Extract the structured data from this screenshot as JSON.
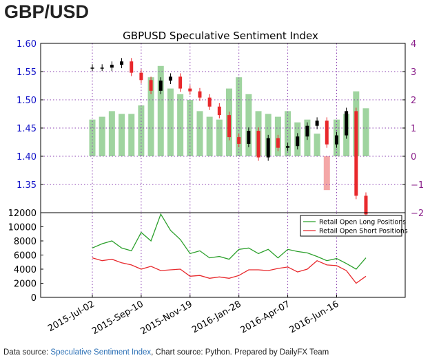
{
  "page": {
    "title": "GBP/USD",
    "footer": {
      "prefix": "Data source: ",
      "link": "Speculative Sentiment Index",
      "suffix": ", Chart source: Python. Prepared by DailyFX Team"
    }
  },
  "colors": {
    "price_up": "#000000",
    "price_down": "#e8282c",
    "ssi_positive": "#9fd49f",
    "ssi_negative": "#f4a7a7",
    "long_line": "#2ca02c",
    "short_line": "#e8282c",
    "grid": "#8a3fb0",
    "left_axis_text": "#1010c8",
    "right_axis_text": "#8a1f8a"
  },
  "chart_data": [
    {
      "type": "line",
      "title": "GBPUSD Speculative Sentiment Index",
      "x_dates": [
        "2015-Jul-02",
        "2015-Jul-16",
        "2015-Jul-30",
        "2015-Aug-13",
        "2015-Aug-27",
        "2015-Sep-10",
        "2015-Sep-24",
        "2015-Oct-08",
        "2015-Oct-22",
        "2015-Nov-05",
        "2015-Nov-19",
        "2015-Dec-03",
        "2015-Dec-17",
        "2015-Dec-31",
        "2016-Jan-14",
        "2016-Jan-28",
        "2016-Feb-11",
        "2016-Feb-25",
        "2016-Mar-10",
        "2016-Mar-24",
        "2016-Apr-07",
        "2016-Apr-21",
        "2016-May-05",
        "2016-May-19",
        "2016-Jun-02",
        "2016-Jun-16",
        "2016-Jun-23",
        "2016-Jun-30",
        "2016-Jul-07"
      ],
      "xtick_labels": [
        "2015-Jul-02",
        "2015-Sep-10",
        "2015-Nov-19",
        "2016-Jan-28",
        "2016-Apr-07",
        "2016-Jun-16"
      ],
      "price": {
        "name": "GBPUSD",
        "values": [
          1.557,
          1.557,
          1.562,
          1.568,
          1.548,
          1.535,
          1.516,
          1.534,
          1.541,
          1.52,
          1.515,
          1.504,
          1.488,
          1.473,
          1.434,
          1.422,
          1.445,
          1.398,
          1.432,
          1.415,
          1.418,
          1.435,
          1.454,
          1.463,
          1.421,
          1.437,
          1.48,
          1.33,
          1.297
        ],
        "ylim": [
          1.3,
          1.6
        ],
        "yticks": [
          1.35,
          1.4,
          1.45,
          1.5,
          1.55,
          1.6
        ],
        "ytick_labels": [
          "1.35",
          "1.40",
          "1.45",
          "1.50",
          "1.55",
          "1.60"
        ]
      },
      "ssi": {
        "name": "SSI",
        "values": [
          1.3,
          1.4,
          1.6,
          1.5,
          1.5,
          1.8,
          2.8,
          3.2,
          2.4,
          2.2,
          2.0,
          1.6,
          1.4,
          1.3,
          2.4,
          2.8,
          2.2,
          1.6,
          1.5,
          1.4,
          1.6,
          1.2,
          1.3,
          0.8,
          -1.2,
          1.3,
          1.5,
          2.3,
          1.7
        ],
        "ylim": [
          -2,
          4
        ],
        "yticks": [
          -2,
          -1,
          0,
          1,
          2,
          3,
          4
        ],
        "ytick_labels": [
          "−2",
          "−1",
          "0",
          "1",
          "2",
          "3",
          "4"
        ]
      }
    },
    {
      "type": "line",
      "series": [
        {
          "name": "Retail Open Long Positions",
          "values": [
            7000,
            7600,
            8000,
            7000,
            6600,
            9200,
            8000,
            11800,
            9500,
            8200,
            6200,
            6600,
            5600,
            5800,
            5400,
            6800,
            7000,
            6200,
            6800,
            5600,
            6800,
            6500,
            6300,
            5800,
            5200,
            5500,
            4800,
            4000,
            5600
          ]
        },
        {
          "name": "Retail Open Short Positions",
          "values": [
            5600,
            5200,
            5400,
            4900,
            4600,
            4000,
            4400,
            3800,
            3900,
            4000,
            3000,
            3100,
            2700,
            2900,
            2700,
            3100,
            3900,
            3900,
            3800,
            4100,
            4300,
            3600,
            4000,
            5200,
            4600,
            4500,
            3800,
            2000,
            3000
          ]
        }
      ],
      "ylim": [
        0,
        12000
      ],
      "yticks": [
        0,
        2000,
        4000,
        6000,
        8000,
        10000,
        12000
      ],
      "ytick_labels": [
        "0",
        "2000",
        "4000",
        "6000",
        "8000",
        "10000",
        "12000"
      ],
      "legend_position": "top-right"
    }
  ]
}
